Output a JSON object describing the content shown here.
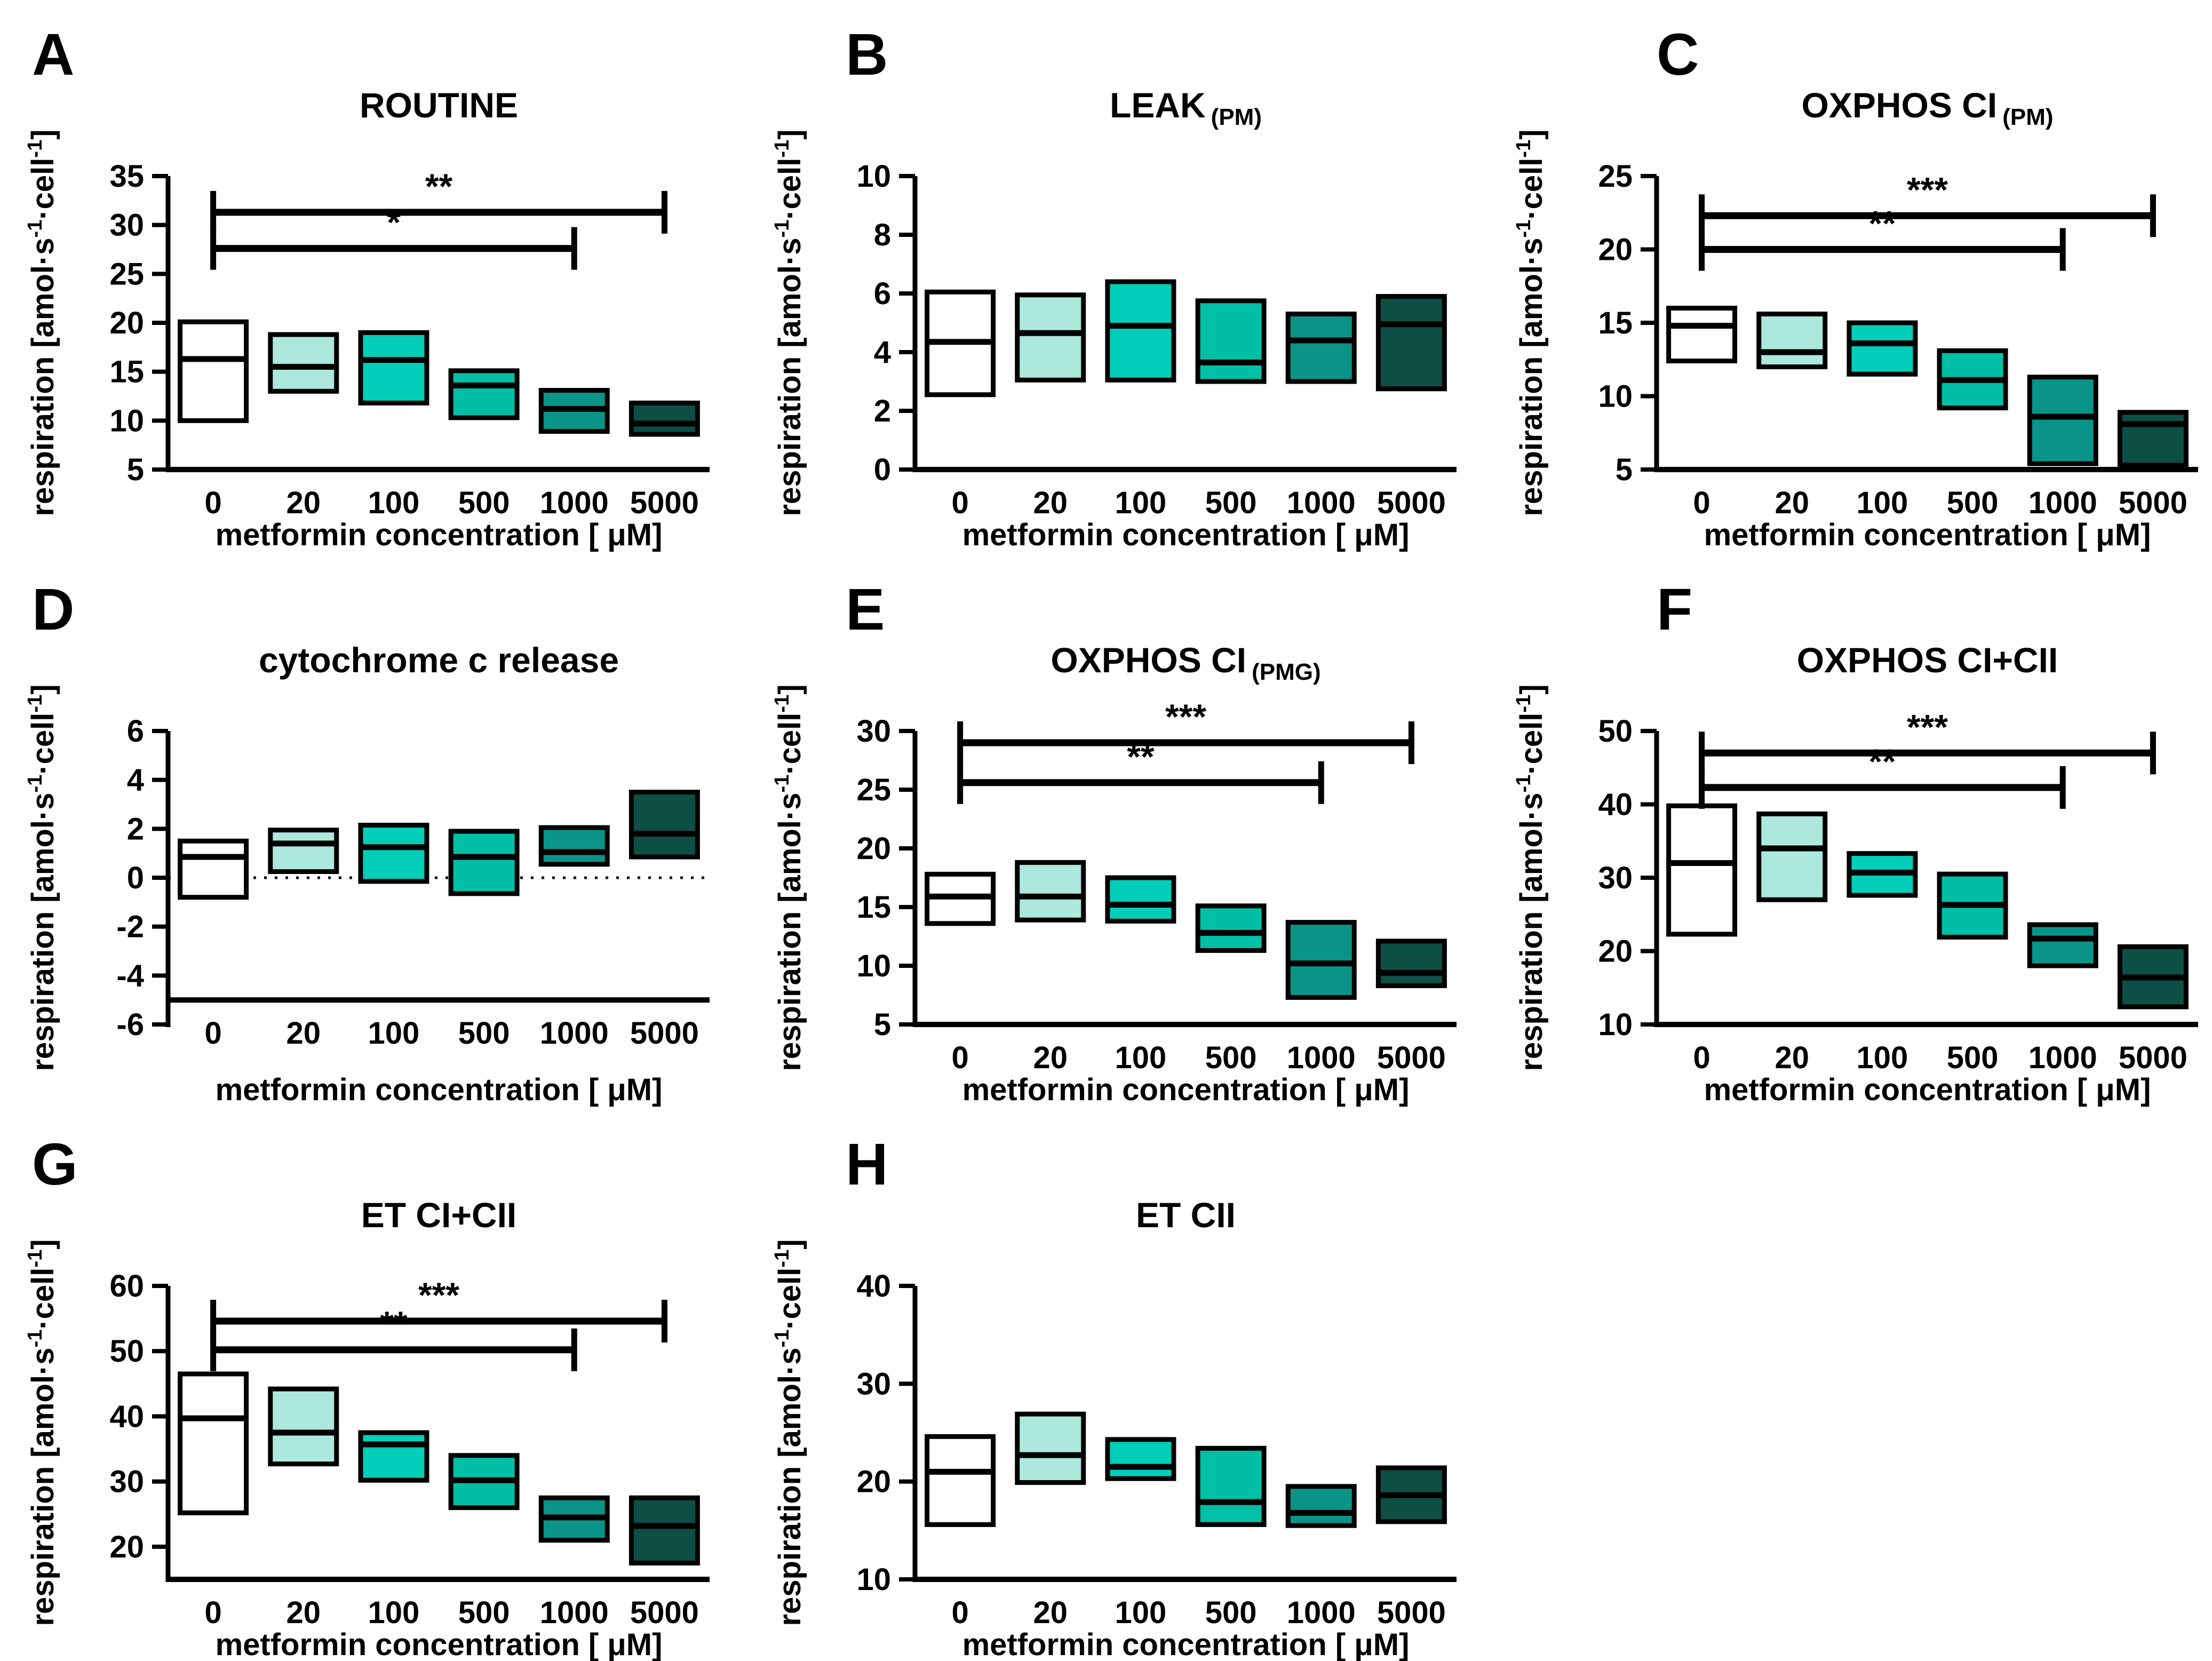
{
  "figure": {
    "background": "#FFFFFF",
    "categories": [
      "0",
      "20",
      "100",
      "500",
      "1000",
      "5000"
    ],
    "xlabel": "metformin concentration [ μM]",
    "ylabel": {
      "pre": "respiration [amol·s",
      "sup": "-1",
      "mid": "·cell",
      "post": "]"
    },
    "palette": [
      "#FFFFFF",
      "#ACE8DC",
      "#00CEB9",
      "#00BFA7",
      "#0A9488",
      "#0C4F44"
    ],
    "box_outline": "#000000",
    "significance_symbols": {
      "p05": "*",
      "p01": "**",
      "p001": "***"
    }
  },
  "chart_data": [
    {
      "type": "floating-bar",
      "letter": "A",
      "title": "ROUTINE",
      "title_sub": "",
      "ylim": [
        5,
        35
      ],
      "yticks": [
        5,
        10,
        15,
        20,
        25,
        30,
        35
      ],
      "x_axis_at": 5,
      "zero_line": false,
      "boxes": [
        [
          10.0,
          16.3,
          20.1
        ],
        [
          13.0,
          15.5,
          18.8
        ],
        [
          11.8,
          16.2,
          19.0
        ],
        [
          10.3,
          13.6,
          15.1
        ],
        [
          8.9,
          11.2,
          13.1
        ],
        [
          8.6,
          9.7,
          11.8
        ]
      ],
      "significance": [
        {
          "label": "**",
          "from": 0,
          "to": 5,
          "y": 31.3
        },
        {
          "label": "*",
          "from": 0,
          "to": 4,
          "y": 27.6
        }
      ]
    },
    {
      "type": "floating-bar",
      "letter": "B",
      "title": "LEAK",
      "title_sub": "(PM)",
      "ylim": [
        0,
        10
      ],
      "yticks": [
        0,
        2,
        4,
        6,
        8,
        10
      ],
      "x_axis_at": 0,
      "zero_line": false,
      "boxes": [
        [
          2.55,
          4.35,
          6.05
        ],
        [
          3.05,
          4.65,
          5.95
        ],
        [
          3.05,
          4.9,
          6.4
        ],
        [
          3.0,
          3.65,
          5.75
        ],
        [
          3.0,
          4.4,
          5.3
        ],
        [
          2.75,
          4.95,
          5.9
        ]
      ],
      "significance": []
    },
    {
      "type": "floating-bar",
      "letter": "C",
      "title": "OXPHOS CI",
      "title_sub": "(PM)",
      "ylim": [
        5,
        25
      ],
      "yticks": [
        5,
        10,
        15,
        20,
        25
      ],
      "x_axis_at": 5,
      "zero_line": false,
      "boxes": [
        [
          12.4,
          14.8,
          16.0
        ],
        [
          12.0,
          13.0,
          15.6
        ],
        [
          11.5,
          13.6,
          15.0
        ],
        [
          9.2,
          11.1,
          13.1
        ],
        [
          5.4,
          8.6,
          11.3
        ],
        [
          5.3,
          8.1,
          8.9
        ]
      ],
      "significance": [
        {
          "label": "***",
          "from": 0,
          "to": 5,
          "y": 22.3
        },
        {
          "label": "**",
          "from": 0,
          "to": 4,
          "y": 20.0
        }
      ]
    },
    {
      "type": "floating-bar",
      "letter": "D",
      "title": "cytochrome c release",
      "title_sub": "",
      "ylim": [
        -6,
        6
      ],
      "yticks": [
        -6,
        -4,
        -2,
        0,
        2,
        4,
        6
      ],
      "x_axis_at": -5,
      "zero_line": true,
      "boxes": [
        [
          -0.8,
          0.85,
          1.5
        ],
        [
          0.25,
          1.4,
          1.95
        ],
        [
          -0.15,
          1.25,
          2.15
        ],
        [
          -0.65,
          0.85,
          1.9
        ],
        [
          0.55,
          1.05,
          2.05
        ],
        [
          0.85,
          1.8,
          3.5
        ]
      ],
      "significance": []
    },
    {
      "type": "floating-bar",
      "letter": "E",
      "title": "OXPHOS CI",
      "title_sub": "(PMG)",
      "ylim": [
        5,
        30
      ],
      "yticks": [
        5,
        10,
        15,
        20,
        25,
        30
      ],
      "x_axis_at": 5,
      "zero_line": false,
      "boxes": [
        [
          13.6,
          15.9,
          17.8
        ],
        [
          13.9,
          15.9,
          18.8
        ],
        [
          13.8,
          15.2,
          17.5
        ],
        [
          11.3,
          12.8,
          15.1
        ],
        [
          7.3,
          10.2,
          13.7
        ],
        [
          8.3,
          9.4,
          12.1
        ]
      ],
      "significance": [
        {
          "label": "***",
          "from": 0,
          "to": 5,
          "y": 29.0
        },
        {
          "label": "**",
          "from": 0,
          "to": 4,
          "y": 25.6
        }
      ]
    },
    {
      "type": "floating-bar",
      "letter": "F",
      "title": "OXPHOS CI+CII",
      "title_sub": "",
      "ylim": [
        10,
        50
      ],
      "yticks": [
        10,
        20,
        30,
        40,
        50
      ],
      "x_axis_at": 10,
      "zero_line": false,
      "boxes": [
        [
          22.3,
          32.0,
          39.8
        ],
        [
          27.0,
          34.0,
          38.7
        ],
        [
          27.6,
          30.7,
          33.3
        ],
        [
          21.9,
          26.3,
          30.5
        ],
        [
          18.0,
          21.7,
          23.6
        ],
        [
          12.4,
          16.4,
          20.6
        ]
      ],
      "significance": [
        {
          "label": "***",
          "from": 0,
          "to": 5,
          "y": 47.0
        },
        {
          "label": "**",
          "from": 0,
          "to": 4,
          "y": 42.3
        }
      ]
    },
    {
      "type": "floating-bar",
      "letter": "G",
      "title": "ET CI+CII",
      "title_sub": "",
      "ylim": [
        15,
        60
      ],
      "yticks": [
        20,
        30,
        40,
        50,
        60
      ],
      "x_axis_at": 15,
      "zero_line": false,
      "boxes": [
        [
          25.2,
          39.7,
          46.5
        ],
        [
          32.7,
          37.5,
          44.2
        ],
        [
          30.2,
          35.7,
          37.5
        ],
        [
          26.0,
          30.2,
          34.0
        ],
        [
          21.0,
          24.5,
          27.5
        ],
        [
          17.5,
          23.2,
          27.5
        ]
      ],
      "significance": [
        {
          "label": "***",
          "from": 0,
          "to": 5,
          "y": 54.6
        },
        {
          "label": "**",
          "from": 0,
          "to": 4,
          "y": 50.2
        }
      ]
    },
    {
      "type": "floating-bar",
      "letter": "H",
      "title": "ET CII",
      "title_sub": "",
      "ylim": [
        10,
        40
      ],
      "yticks": [
        10,
        20,
        30,
        40
      ],
      "x_axis_at": 10,
      "zero_line": false,
      "boxes": [
        [
          15.6,
          21.0,
          24.6
        ],
        [
          19.9,
          22.7,
          26.9
        ],
        [
          20.3,
          21.5,
          24.3
        ],
        [
          15.6,
          17.9,
          23.4
        ],
        [
          15.5,
          16.8,
          19.5
        ],
        [
          15.9,
          18.6,
          21.4
        ]
      ],
      "significance": []
    }
  ]
}
